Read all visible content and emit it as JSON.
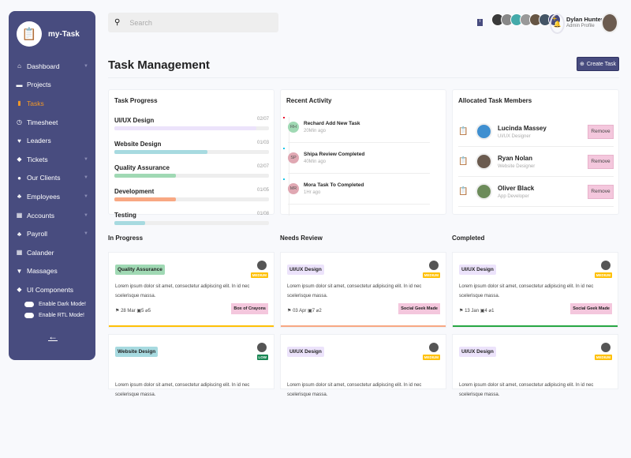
{
  "app": {
    "name": "my-Task"
  },
  "sidebar": {
    "items": [
      {
        "label": "Dashboard",
        "icon": "home-icon",
        "sym": "⌂",
        "chevron": true
      },
      {
        "label": "Projects",
        "icon": "briefcase-icon",
        "sym": "▬",
        "chevron": false
      },
      {
        "label": "Tasks",
        "icon": "clipboard-icon",
        "sym": "▮",
        "chevron": false,
        "active": true
      },
      {
        "label": "Timesheet",
        "icon": "clock-icon",
        "sym": "◷",
        "chevron": false
      },
      {
        "label": "Leaders",
        "icon": "bulb-icon",
        "sym": "♥",
        "chevron": false
      },
      {
        "label": "Tickets",
        "icon": "ticket-icon",
        "sym": "◆",
        "chevron": true
      },
      {
        "label": "Our Clients",
        "icon": "user-icon",
        "sym": "●",
        "chevron": true
      },
      {
        "label": "Employees",
        "icon": "users-icon",
        "sym": "♣",
        "chevron": true
      },
      {
        "label": "Accounts",
        "icon": "calculator-icon",
        "sym": "▦",
        "chevron": true
      },
      {
        "label": "Payroll",
        "icon": "payroll-icon",
        "sym": "♣",
        "chevron": true
      },
      {
        "label": "Calander",
        "icon": "calendar-icon",
        "sym": "▦",
        "chevron": false
      },
      {
        "label": "Massages",
        "icon": "message-icon",
        "sym": "▼",
        "chevron": false
      },
      {
        "label": "UI Components",
        "icon": "palette-icon",
        "sym": "◆",
        "chevron": false
      }
    ],
    "dark_mode": "Enable Dark Mode!",
    "rtl_mode": "Enable RTL Mode!"
  },
  "search": {
    "placeholder": "Search"
  },
  "header": {
    "user_name": "Dylan Hunter",
    "user_role": "Admin Profile"
  },
  "page": {
    "title": "Task Management",
    "create_label": "Create Task"
  },
  "progress": {
    "title": "Task Progress",
    "items": [
      {
        "label": "UI/UX Design",
        "count": "02/07",
        "pct": 92,
        "color": "#ece3fb"
      },
      {
        "label": "Website Design",
        "count": "01/03",
        "pct": 60,
        "color": "#a7daE0"
      },
      {
        "label": "Quality Assurance",
        "count": "02/07",
        "pct": 40,
        "color": "#a0d9b4"
      },
      {
        "label": "Development",
        "count": "01/05",
        "pct": 40,
        "color": "#f8a883"
      },
      {
        "label": "Testing",
        "count": "01/08",
        "pct": 20,
        "color": "#a7daE0"
      }
    ]
  },
  "activity": {
    "title": "Recent Activity",
    "items": [
      {
        "initials": "RH",
        "text": "Rechard Add New Task",
        "time": "20Min ago",
        "bg": "#a0d9b4",
        "dot": "#e8132f"
      },
      {
        "initials": "SP",
        "text": "Shipa Review Completed",
        "time": "40Min ago",
        "bg": "#e0a8b3",
        "dot": "#17c6e8"
      },
      {
        "initials": "MR",
        "text": "Mora Task To Completed",
        "time": "1Hr ago",
        "bg": "#e0a8b3",
        "dot": "#17c6e8"
      }
    ]
  },
  "members": {
    "title": "Allocated Task Members",
    "remove_label": "Remove",
    "items": [
      {
        "name": "Lucinda Massey",
        "role": "UI/UX Designer",
        "av": "#3f8fd0"
      },
      {
        "name": "Ryan Nolan",
        "role": "Website Designer",
        "av": "#6b5b4f"
      },
      {
        "name": "Oliver Black",
        "role": "App Developer",
        "av": "#6c8b5a"
      }
    ]
  },
  "columns": [
    {
      "title": "In Progress",
      "cards": [
        {
          "tag": "Quality Assurance",
          "tag_bg": "#a0d9b4",
          "priority": "MEDIUM",
          "pri_bg": "#ffc107",
          "desc": "Lorem ipsum dolor sit amet, consectetur adipiscing elit. In id nec scelerisque massa.",
          "date": "28 Mar",
          "comments": "5",
          "attachments": "5",
          "project": "Box of Crayons",
          "line": "#ffc107"
        },
        {
          "tag": "Website Design",
          "tag_bg": "#a7dae0",
          "priority": "LOW",
          "pri_bg": "#198754"
        }
      ]
    },
    {
      "title": "Needs Review",
      "cards": [
        {
          "tag": "UI/UX Design",
          "tag_bg": "#ece3fb",
          "priority": "MEDIUM",
          "pri_bg": "#ffc107",
          "desc": "Lorem ipsum dolor sit amet, consectetur adipiscing elit. In id nec scelerisque massa.",
          "date": "03 Apr",
          "comments": "7",
          "attachments": "2",
          "project": "Social Geek Made",
          "line": "#f8a883"
        },
        {
          "tag": "UI/UX Design",
          "tag_bg": "#ece3fb",
          "priority": "MEDIUM",
          "pri_bg": "#ffc107"
        }
      ]
    },
    {
      "title": "Completed",
      "cards": [
        {
          "tag": "UI/UX Design",
          "tag_bg": "#ece3fb",
          "priority": "MEDIUM",
          "pri_bg": "#ffc107",
          "desc": "Lorem ipsum dolor sit amet, consectetur adipiscing elit. In id nec scelerisque massa.",
          "date": "13 Jan",
          "comments": "4",
          "attachments": "1",
          "project": "Social Geek Made",
          "line": "#28a745"
        },
        {
          "tag": "UI/UX Design",
          "tag_bg": "#ece3fb",
          "priority": "MEDIUM",
          "pri_bg": "#ffc107"
        }
      ]
    }
  ]
}
